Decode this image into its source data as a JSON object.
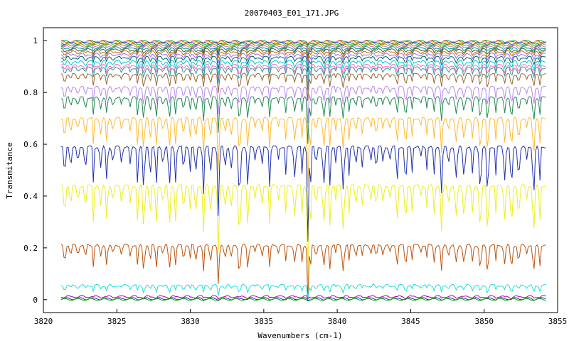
{
  "chart_data": {
    "type": "line",
    "title": "20070403_E01_171.JPG",
    "xlabel": "Wavenumbers (cm-1)",
    "ylabel": "Transmitance",
    "xlim": [
      3820,
      3855
    ],
    "ylim": [
      -0.05,
      1.05
    ],
    "x_ticks": [
      3820,
      3825,
      3830,
      3835,
      3840,
      3845,
      3850,
      3855
    ],
    "x_tick_labels": [
      "3820",
      "3825",
      "3830",
      "3835",
      "3840",
      "3845",
      "3850",
      "3855"
    ],
    "y_ticks": [
      0,
      0.2,
      0.4,
      0.6,
      0.8,
      1
    ],
    "y_tick_labels": [
      "0",
      "0.2",
      "0.4",
      "0.6",
      "0.8",
      "1"
    ],
    "grid": false,
    "legend": "none",
    "x_range_data": [
      3821.2,
      3854.2
    ],
    "series": [
      {
        "color": "#00aa55",
        "baseline": 0.998,
        "depth": 0.003
      },
      {
        "color": "#ff3333",
        "baseline": 0.996,
        "depth": 0.004
      },
      {
        "color": "#ffcc00",
        "baseline": 0.994,
        "depth": 0.005
      },
      {
        "color": "#3333cc",
        "baseline": 0.991,
        "depth": 0.006
      },
      {
        "color": "#33cc33",
        "baseline": 0.988,
        "depth": 0.008
      },
      {
        "color": "#999900",
        "baseline": 0.984,
        "depth": 0.01
      },
      {
        "color": "#cc66cc",
        "baseline": 0.979,
        "depth": 0.012
      },
      {
        "color": "#009999",
        "baseline": 0.973,
        "depth": 0.015
      },
      {
        "color": "#336633",
        "baseline": 0.966,
        "depth": 0.018
      },
      {
        "color": "#cc6600",
        "baseline": 0.958,
        "depth": 0.021
      },
      {
        "color": "#9966ff",
        "baseline": 0.948,
        "depth": 0.025
      },
      {
        "color": "#006666",
        "baseline": 0.936,
        "depth": 0.03
      },
      {
        "color": "#00cccc",
        "baseline": 0.92,
        "depth": 0.036
      },
      {
        "color": "#ff66cc",
        "baseline": 0.905,
        "depth": 0.04
      },
      {
        "color": "#339999",
        "baseline": 0.895,
        "depth": 0.045
      },
      {
        "color": "#996633",
        "baseline": 0.87,
        "depth": 0.055
      },
      {
        "color": "#bb88ee",
        "baseline": 0.82,
        "depth": 0.075
      },
      {
        "color": "#228855",
        "baseline": 0.78,
        "depth": 0.095
      },
      {
        "color": "#ffbb33",
        "baseline": 0.7,
        "depth": 0.14
      },
      {
        "color": "#2233aa",
        "baseline": 0.59,
        "depth": 0.19
      },
      {
        "color": "#eeee22",
        "baseline": 0.44,
        "depth": 0.19
      },
      {
        "color": "#bb5511",
        "baseline": 0.21,
        "depth": 0.11
      },
      {
        "color": "#22dddd",
        "baseline": 0.055,
        "depth": 0.03
      },
      {
        "color": "#aa00aa",
        "baseline": 0.012,
        "depth": 0.006
      },
      {
        "color": "#2222cc",
        "baseline": 0.004,
        "depth": 0.003
      },
      {
        "color": "#00aa00",
        "baseline": 0.001,
        "depth": 0.001
      }
    ]
  }
}
